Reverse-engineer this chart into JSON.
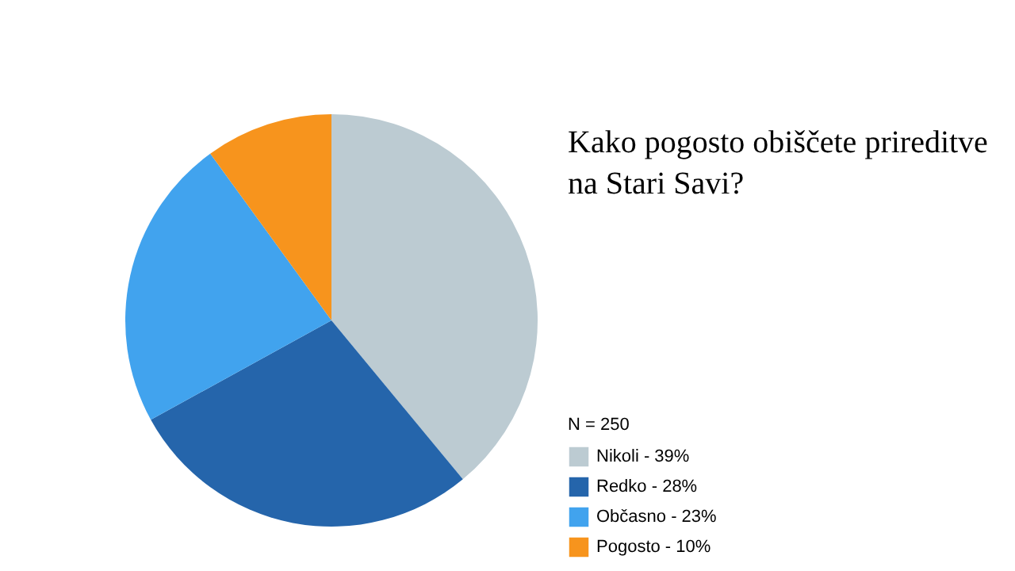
{
  "chart_data": {
    "type": "pie",
    "title": "Kako pogosto obiščete prireditve\nna Stari Savi?",
    "legend_title": "N = 250",
    "categories": [
      "Nikoli - 39%",
      "Redko - 28%",
      "Občasno - 23%",
      "Pogosto - 10%"
    ],
    "values": [
      39,
      28,
      23,
      10
    ],
    "colors": [
      "#bccbd2",
      "#2565ab",
      "#41a3ee",
      "#f7941d"
    ],
    "legend": "bottom right"
  }
}
